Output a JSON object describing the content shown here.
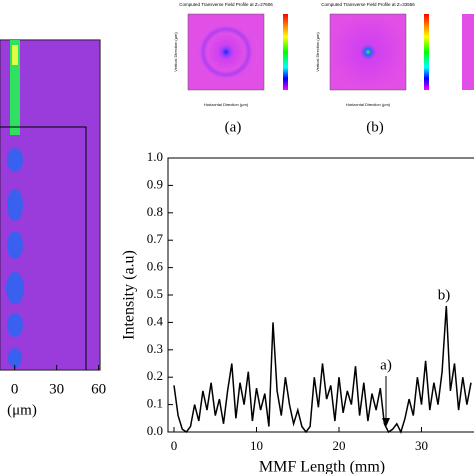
{
  "chart_data": [
    {
      "type": "image",
      "xlabel": "(μm)",
      "xlim": [
        -10.5,
        61
      ],
      "xticks": [
        0,
        30,
        60
      ]
    },
    {
      "type": "field",
      "title": "Computed Transverse Field Profile at Z=27606",
      "caption": "(a)",
      "xlabel": "Horizontal Direction (μm)",
      "ylabel": "Vertical Direction (μm)"
    },
    {
      "type": "field",
      "title": "Computed Transverse Field Profile at Z=33556",
      "caption": "(b)",
      "xlabel": "Horizontal Direction (μm)",
      "ylabel": "Vertical Direction (μm)"
    },
    {
      "type": "line",
      "xlabel": "MMF Length (mm)",
      "ylabel": "Intensity (a.u)",
      "color": "#000000",
      "annotations": [
        "a)",
        "b)"
      ],
      "xlim": [
        0,
        36.4
      ],
      "xticks": [
        0,
        10,
        20,
        30
      ],
      "ylim": [
        0,
        1
      ],
      "yticks": [
        {
          "value": 0,
          "label": "0.0"
        },
        {
          "value": 0.1,
          "label": "0.1"
        },
        {
          "value": 0.2,
          "label": "0.2"
        },
        {
          "value": 0.3,
          "label": "0.3"
        },
        {
          "value": 0.4,
          "label": "0.4"
        },
        {
          "value": 0.5,
          "label": "0.5"
        },
        {
          "value": 0.6,
          "label": "0.6"
        },
        {
          "value": 0.7,
          "label": "0.7"
        },
        {
          "value": 0.8,
          "label": "0.8"
        },
        {
          "value": 0.9,
          "label": "0.9"
        },
        {
          "value": 1,
          "label": "1.0"
        }
      ],
      "x": [
        0,
        0.5,
        1,
        1.5,
        2,
        2.5,
        3,
        3.5,
        4,
        4.5,
        5,
        5.5,
        6,
        6.5,
        7,
        7.5,
        8,
        8.5,
        9,
        9.5,
        10,
        10.5,
        11,
        11.5,
        12,
        12.5,
        13,
        13.5,
        14,
        14.5,
        15,
        15.5,
        16,
        16.5,
        17,
        17.5,
        18,
        18.5,
        19,
        19.5,
        20,
        20.5,
        21,
        21.5,
        22,
        22.5,
        23,
        23.5,
        24,
        24.5,
        25,
        25.5,
        26,
        26.5,
        27,
        27.5,
        28,
        28.5,
        29,
        29.5,
        30,
        30.5,
        31,
        31.5,
        32,
        32.5,
        33,
        33.5,
        34,
        34.5,
        35,
        35.5,
        36
      ],
      "values": [
        0.17,
        0.06,
        0.01,
        0,
        0.02,
        0.1,
        0.04,
        0.15,
        0.08,
        0.18,
        0.06,
        0.12,
        0.03,
        0.15,
        0.25,
        0.05,
        0.18,
        0.1,
        0.22,
        0.04,
        0.16,
        0.08,
        0.14,
        0.02,
        0.4,
        0.15,
        0.06,
        0.2,
        0.1,
        0.03,
        0.08,
        0.02,
        0,
        0.02,
        0.2,
        0.09,
        0.25,
        0.12,
        0.17,
        0.04,
        0.2,
        0.07,
        0.15,
        0.1,
        0.24,
        0.06,
        0.18,
        0.04,
        0.14,
        0.08,
        0.16,
        0.03,
        0,
        0.01,
        0.03,
        0,
        0.05,
        0.12,
        0.06,
        0.2,
        0.1,
        0.26,
        0.08,
        0.18,
        0.1,
        0.22,
        0.46,
        0.15,
        0.25,
        0.08,
        0.2,
        0.1,
        0.18
      ]
    }
  ]
}
